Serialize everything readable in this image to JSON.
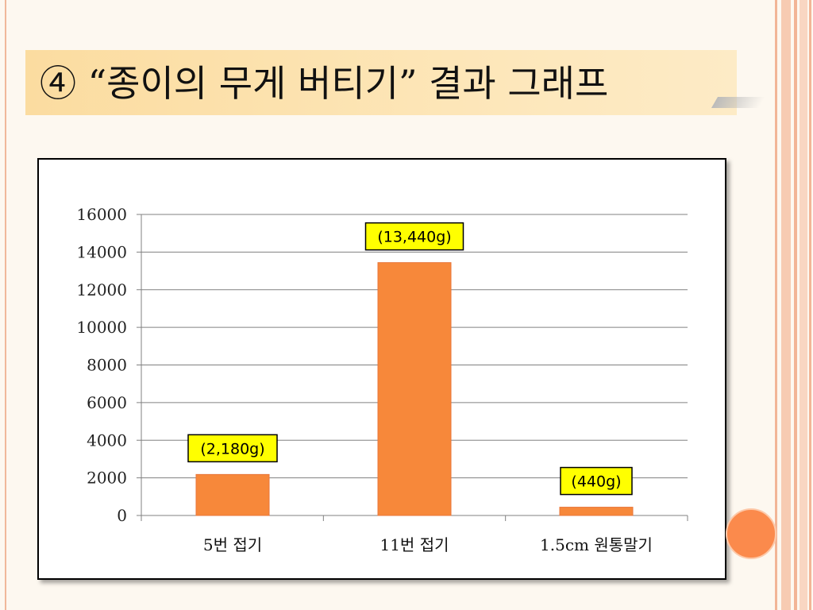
{
  "slide": {
    "title": "④ “종이의 무게 버티기” 결과 그래프"
  },
  "colors": {
    "bar": "#f7883a",
    "label_bg": "#ffff00",
    "title_bar": "#fde2ae",
    "accent_circle": "#fb8a4c"
  },
  "chart_data": {
    "type": "bar",
    "categories": [
      "5번 접기",
      "11번 접기",
      "1.5cm 원통말기"
    ],
    "values": [
      2180,
      13440,
      440
    ],
    "data_labels": [
      "(2,180g)",
      "(13,440g)",
      "(440g)"
    ],
    "y_ticks": [
      "0",
      "2000",
      "4000",
      "6000",
      "8000",
      "10000",
      "12000",
      "14000",
      "16000"
    ],
    "ylim": [
      0,
      16000
    ],
    "grid": true,
    "legend": "none"
  }
}
